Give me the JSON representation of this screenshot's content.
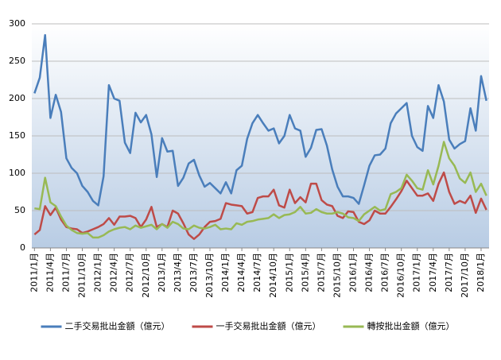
{
  "chart_data": {
    "type": "line",
    "categories": [
      "2011/1月",
      null,
      null,
      "2011/4月",
      null,
      null,
      "2011/7月",
      null,
      null,
      "2011/10月",
      null,
      null,
      "2012/1月",
      null,
      null,
      "2012/4月",
      null,
      null,
      "2012/7月",
      null,
      null,
      "2012/10月",
      null,
      null,
      "2013/1月",
      null,
      null,
      "2013/4月",
      null,
      null,
      "2013/7月",
      null,
      null,
      "2013/10月",
      null,
      null,
      "2014/1月",
      null,
      null,
      "2014/4月",
      null,
      null,
      "2014/7月",
      null,
      null,
      "2014/10月",
      null,
      null,
      "2015/1月",
      null,
      null,
      "2015/4月",
      null,
      null,
      "2015/7月",
      null,
      null,
      "2015/10月",
      null,
      null,
      "2016/1月",
      null,
      null,
      "2016/4月",
      null,
      null,
      "2016/7月",
      null,
      null,
      "2016/10月",
      null,
      null,
      "2017/1月",
      null,
      null,
      "2017/4月",
      null,
      null,
      "2017/7月",
      null,
      null,
      "2017/10月",
      null,
      null,
      "2018/1月",
      null
    ],
    "series": [
      {
        "name": "二手交易批出金額（億元）",
        "color": "#4a7ebb",
        "values": [
          207,
          228,
          285,
          174,
          205,
          182,
          120,
          107,
          100,
          83,
          75,
          63,
          57,
          96,
          218,
          200,
          197,
          141,
          127,
          181,
          168,
          178,
          152,
          95,
          147,
          129,
          130,
          83,
          94,
          113,
          118,
          97,
          82,
          87,
          80,
          73,
          88,
          73,
          104,
          110,
          146,
          167,
          178,
          167,
          157,
          160,
          140,
          150,
          178,
          160,
          157,
          122,
          134,
          158,
          159,
          137,
          105,
          82,
          69,
          69,
          67,
          59,
          84,
          110,
          124,
          125,
          133,
          167,
          180,
          187,
          194,
          150,
          135,
          130,
          190,
          174,
          218,
          196,
          145,
          133,
          139,
          143,
          187,
          157,
          230,
          197
        ]
      },
      {
        "name": "一手交易批出金額（億元）",
        "color": "#be4b48",
        "values": [
          18,
          24,
          56,
          44,
          54,
          38,
          28,
          26,
          25,
          20,
          22,
          25,
          28,
          32,
          40,
          31,
          42,
          42,
          43,
          40,
          28,
          38,
          55,
          28,
          32,
          28,
          50,
          46,
          33,
          18,
          12,
          18,
          28,
          35,
          36,
          39,
          60,
          58,
          57,
          56,
          46,
          48,
          67,
          69,
          69,
          78,
          57,
          54,
          78,
          60,
          68,
          61,
          86,
          86,
          64,
          58,
          56,
          43,
          40,
          49,
          48,
          35,
          32,
          37,
          50,
          46,
          46,
          55,
          65,
          76,
          90,
          80,
          70,
          70,
          73,
          63,
          86,
          101,
          75,
          59,
          63,
          60,
          70,
          47,
          66,
          51
        ]
      },
      {
        "name": "轉按批出金額（億元）",
        "color": "#98b954",
        "values": [
          53,
          52,
          94,
          61,
          56,
          42,
          30,
          24,
          20,
          19,
          20,
          14,
          14,
          17,
          22,
          25,
          27,
          28,
          25,
          30,
          27,
          29,
          31,
          25,
          32,
          27,
          35,
          32,
          26,
          25,
          30,
          27,
          26,
          28,
          31,
          25,
          26,
          25,
          33,
          31,
          35,
          36,
          38,
          39,
          40,
          45,
          40,
          44,
          45,
          48,
          55,
          46,
          47,
          52,
          48,
          46,
          46,
          48,
          46,
          41,
          40,
          36,
          45,
          50,
          55,
          50,
          52,
          72,
          75,
          80,
          98,
          90,
          80,
          78,
          104,
          85,
          110,
          142,
          120,
          110,
          93,
          87,
          101,
          75,
          86,
          70
        ]
      }
    ],
    "ylim": [
      0,
      300
    ],
    "yticks": [
      0,
      50,
      100,
      150,
      200,
      250,
      300
    ],
    "grid": true,
    "legend": "bottom"
  }
}
